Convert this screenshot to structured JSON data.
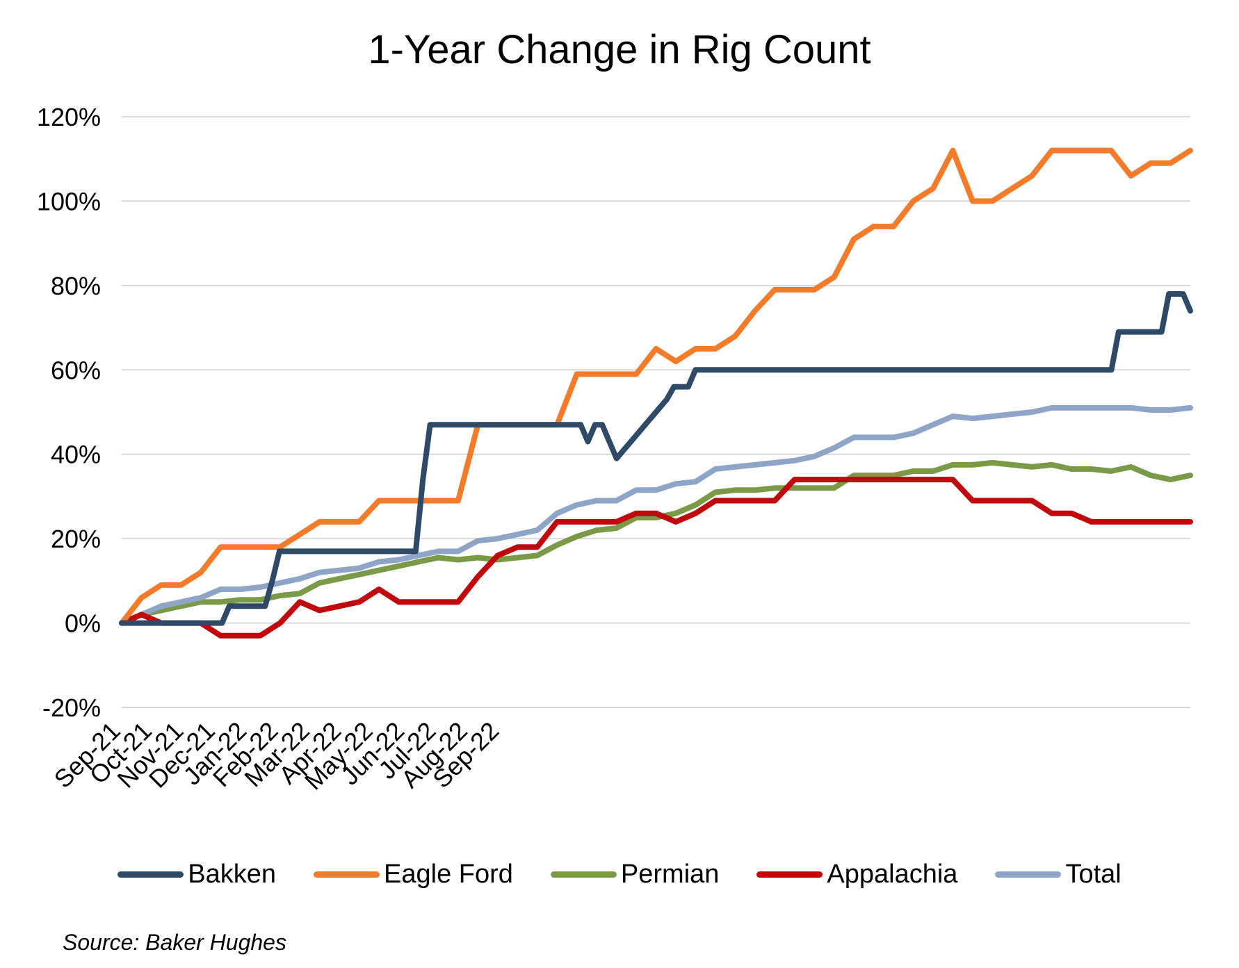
{
  "chart_data": {
    "type": "line",
    "title": "1-Year Change in Rig Count",
    "xlabel": "",
    "ylabel": "",
    "ylim": [
      -20,
      120
    ],
    "yticks": [
      -20,
      0,
      20,
      40,
      60,
      80,
      100,
      120
    ],
    "ytick_labels": [
      "-20%",
      "0%",
      "20%",
      "40%",
      "60%",
      "80%",
      "100%",
      "120%"
    ],
    "xtick_labels": [
      "Sep-21",
      "Oct-21",
      "Nov-21",
      "Dec-21",
      "Jan-22",
      "Feb-22",
      "Mar-22",
      "Apr-22",
      "May-22",
      "Jun-22",
      "Jul-22",
      "Aug-22",
      "Sep-22"
    ],
    "x_points_per_tick": 4.4,
    "grid": true,
    "legend_position": "bottom",
    "series": [
      {
        "name": "Bakken",
        "color": "#2e4a66",
        "values": [
          0,
          0,
          0,
          0,
          0,
          0,
          0,
          0,
          0,
          0,
          0,
          0,
          0,
          0,
          0,
          4,
          4,
          4,
          4,
          4,
          4,
          10,
          17,
          17,
          17,
          17,
          17,
          17,
          17,
          17,
          17,
          17,
          17,
          17,
          17,
          17,
          17,
          17,
          17,
          17,
          17,
          17,
          34,
          47,
          47,
          47,
          47,
          47,
          47,
          47,
          47,
          47,
          47,
          47,
          47,
          47,
          47,
          47,
          47,
          47,
          47,
          47,
          47,
          47,
          47,
          43,
          47,
          47,
          43,
          39,
          41,
          43,
          45,
          47,
          49,
          51,
          53,
          56,
          56,
          56,
          60,
          60,
          60,
          60,
          60,
          60,
          60,
          60,
          60,
          60,
          60,
          60,
          60,
          60,
          60,
          60,
          60,
          60,
          60,
          60,
          60,
          60,
          60,
          60,
          60,
          60,
          60,
          60,
          60,
          60,
          60,
          60,
          60,
          60,
          60,
          60,
          60,
          60,
          60,
          60,
          60,
          60,
          60,
          60,
          60,
          60,
          60,
          60,
          60,
          60,
          60,
          60,
          60,
          60,
          60,
          60,
          60,
          60,
          60,
          69,
          69,
          69,
          69,
          69,
          69,
          69,
          78,
          78,
          78,
          74
        ]
      },
      {
        "name": "Eagle Ford",
        "color": "#f47b2a",
        "values": [
          0,
          6,
          9,
          9,
          12,
          18,
          18,
          18,
          18,
          21,
          24,
          24,
          24,
          29,
          29,
          29,
          29,
          29,
          47,
          47,
          47,
          47,
          47,
          59,
          59,
          59,
          59,
          65,
          62,
          65,
          65,
          68,
          74,
          79,
          79,
          79,
          82,
          91,
          94,
          94,
          100,
          103,
          112,
          100,
          100,
          103,
          106,
          112,
          112,
          112,
          112,
          106,
          109,
          109,
          112
        ]
      },
      {
        "name": "Permian",
        "color": "#7a9a48",
        "values": [
          0,
          2,
          3,
          4,
          5,
          5,
          5.5,
          5.5,
          6.5,
          7,
          9.5,
          10.5,
          11.5,
          12.5,
          13.5,
          14.5,
          15.5,
          15,
          15.5,
          15,
          15.5,
          16,
          18.5,
          20.5,
          22,
          22.5,
          25,
          25,
          26,
          28,
          31,
          31.5,
          31.5,
          32,
          32,
          32,
          32,
          35,
          35,
          35,
          36,
          36,
          37.5,
          37.5,
          38,
          37.5,
          37,
          37.5,
          36.5,
          36.5,
          36,
          37,
          35,
          34,
          35
        ]
      },
      {
        "name": "Appalachia",
        "color": "#c0080d",
        "values": [
          0,
          2,
          0,
          0,
          0,
          -3,
          -3,
          -3,
          0,
          5,
          3,
          4,
          5,
          8,
          5,
          5,
          5,
          5,
          11,
          16,
          18,
          18,
          24,
          24,
          24,
          24,
          26,
          26,
          24,
          26,
          29,
          29,
          29,
          29,
          34,
          34,
          34,
          34,
          34,
          34,
          34,
          34,
          34,
          29,
          29,
          29,
          29,
          26,
          26,
          24,
          24,
          24,
          24,
          24,
          24
        ]
      },
      {
        "name": "Total",
        "color": "#8ea5c8",
        "values": [
          0,
          2,
          4,
          5,
          6,
          8,
          8,
          8.5,
          9.5,
          10.5,
          12,
          12.5,
          13,
          14.5,
          15,
          16,
          17,
          17,
          19.5,
          20,
          21,
          22,
          26,
          28,
          29,
          29,
          31.5,
          31.5,
          33,
          33.5,
          36.5,
          37,
          37.5,
          38,
          38.5,
          39.5,
          41.5,
          44,
          44,
          44,
          45,
          47,
          49,
          48.5,
          49,
          49.5,
          50,
          51,
          51,
          51,
          51,
          51,
          50.5,
          50.5,
          51
        ]
      }
    ]
  },
  "legend": {
    "items": [
      "Bakken",
      "Eagle Ford",
      "Permian",
      "Appalachia",
      "Total"
    ]
  },
  "source": "Source: Baker Hughes"
}
